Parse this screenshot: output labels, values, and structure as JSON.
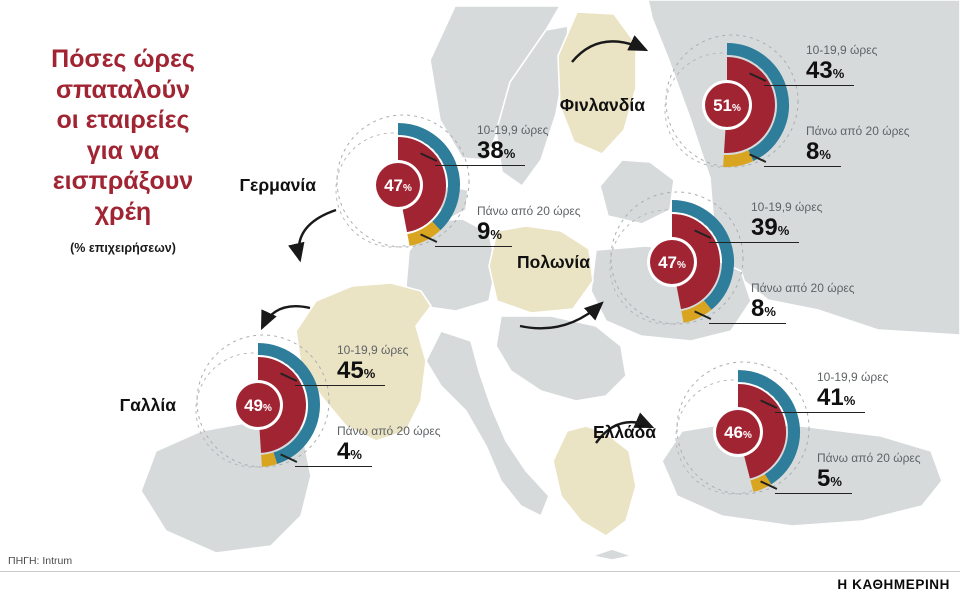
{
  "title": {
    "lines": [
      "Πόσες ώρες",
      "σπαταλούν",
      "οι εταιρείες",
      "για να εισπράξουν",
      "χρέη"
    ],
    "subtitle": "(% επιχειρήσεων)"
  },
  "source_label": "ΠΗΓΗ: Intrum",
  "brand": "Η ΚΑΘΗΜΕΡΙΝΗ",
  "percent_sign": "%",
  "colors": {
    "accent_red": "#a12433",
    "teal": "#2e7d9a",
    "gold": "#d9a520",
    "map_land": "#d6dadb",
    "map_highlight": "#eae3c4"
  },
  "chart_data": {
    "type": "pie",
    "title": "Πόσες ώρες σπαταλούν οι εταιρείες για να εισπράξουν χρέη",
    "unit": "% επιχειρήσεων",
    "segment_labels": [
      "10-19,9 ώρες",
      "Πάνω από 20 ώρες"
    ],
    "countries": [
      {
        "name": "Γερμανία",
        "center_pct": 47,
        "hours_10_19_pct": 38,
        "over_20_pct": 9
      },
      {
        "name": "Φινλανδία",
        "center_pct": 51,
        "hours_10_19_pct": 43,
        "over_20_pct": 8
      },
      {
        "name": "Πολωνία",
        "center_pct": 47,
        "hours_10_19_pct": 39,
        "over_20_pct": 8
      },
      {
        "name": "Γαλλία",
        "center_pct": 49,
        "hours_10_19_pct": 45,
        "over_20_pct": 4
      },
      {
        "name": "Ελλάδα",
        "center_pct": 46,
        "hours_10_19_pct": 41,
        "over_20_pct": 5
      }
    ]
  }
}
